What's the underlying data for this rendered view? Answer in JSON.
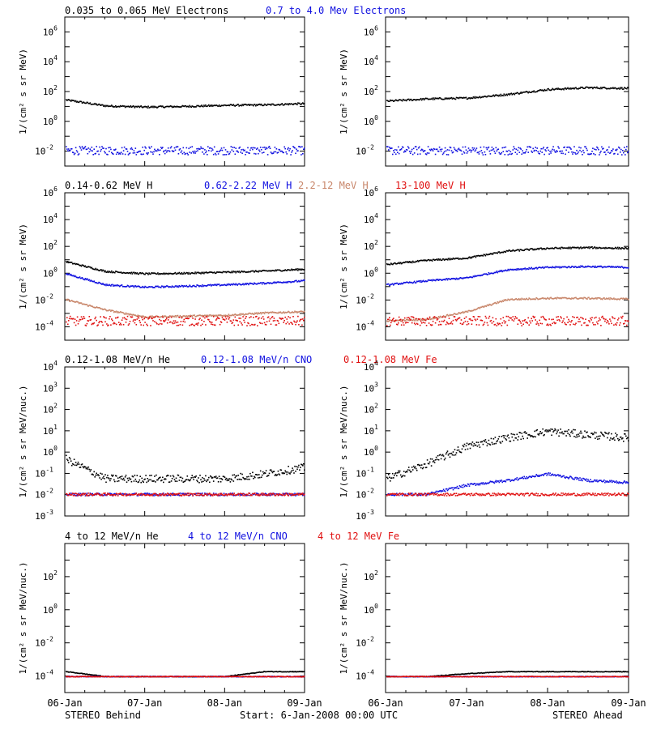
{
  "colors": {
    "black": "#000000",
    "blue": "#1010e0",
    "tan": "#c8866a",
    "red": "#e01010"
  },
  "rows": [
    {
      "legend": [
        {
          "text": "0.035 to 0.065 MeV Electrons",
          "color": "#000000"
        },
        {
          "text": "0.7 to 4.0 Mev Electrons",
          "color": "#1010e0"
        }
      ],
      "ylabel": "1/(cm² s sr MeV)",
      "ylim_log": [
        -3,
        7
      ],
      "ticks": [
        {
          "exp": -2,
          "text": "10",
          "sup": "-2"
        },
        {
          "exp": 0,
          "text": "10",
          "sup": "0"
        },
        {
          "exp": 2,
          "text": "10",
          "sup": "2"
        },
        {
          "exp": 4,
          "text": "10",
          "sup": "4"
        },
        {
          "exp": 6,
          "text": "10",
          "sup": "6"
        }
      ]
    },
    {
      "legend": [
        {
          "text": "0.14-0.62 MeV H",
          "color": "#000000"
        },
        {
          "text": "0.62-2.22 MeV H",
          "color": "#1010e0"
        },
        {
          "text": "2.2-12 MeV H",
          "color": "#c8866a"
        },
        {
          "text": "13-100 MeV H",
          "color": "#e01010"
        }
      ],
      "ylabel": "1/(cm² s sr MeV)",
      "ylim_log": [
        -5,
        6
      ],
      "ticks": [
        {
          "exp": -4,
          "text": "10",
          "sup": "-4"
        },
        {
          "exp": -2,
          "text": "10",
          "sup": "-2"
        },
        {
          "exp": 0,
          "text": "10",
          "sup": "0"
        },
        {
          "exp": 2,
          "text": "10",
          "sup": "2"
        },
        {
          "exp": 4,
          "text": "10",
          "sup": "4"
        },
        {
          "exp": 6,
          "text": "10",
          "sup": "6"
        }
      ]
    },
    {
      "legend": [
        {
          "text": "0.12-1.08 MeV/n He",
          "color": "#000000"
        },
        {
          "text": "0.12-1.08 MeV/n CNO",
          "color": "#1010e0"
        },
        {
          "text": "0.12-1.08 MeV Fe",
          "color": "#e01010"
        }
      ],
      "ylabel": "1/(cm² s sr MeV/nuc.)",
      "ylim_log": [
        -3,
        4
      ],
      "ticks": [
        {
          "exp": -3,
          "text": "10",
          "sup": "-3"
        },
        {
          "exp": -2,
          "text": "10",
          "sup": "-2"
        },
        {
          "exp": -1,
          "text": "10",
          "sup": "-1"
        },
        {
          "exp": 0,
          "text": "10",
          "sup": "0"
        },
        {
          "exp": 1,
          "text": "10",
          "sup": "1"
        },
        {
          "exp": 2,
          "text": "10",
          "sup": "2"
        },
        {
          "exp": 3,
          "text": "10",
          "sup": "3"
        },
        {
          "exp": 4,
          "text": "10",
          "sup": "4"
        }
      ]
    },
    {
      "legend": [
        {
          "text": "4 to 12 MeV/n He",
          "color": "#000000"
        },
        {
          "text": "4 to 12 MeV/n CNO",
          "color": "#1010e0"
        },
        {
          "text": "4 to 12 MeV Fe",
          "color": "#e01010"
        }
      ],
      "ylabel": "1/(cm² s sr MeV/nuc.)",
      "ylim_log": [
        -5,
        4
      ],
      "ticks": [
        {
          "exp": -4,
          "text": "10",
          "sup": "-4"
        },
        {
          "exp": -2,
          "text": "10",
          "sup": "-2"
        },
        {
          "exp": 0,
          "text": "10",
          "sup": "0"
        },
        {
          "exp": 2,
          "text": "10",
          "sup": "2"
        }
      ]
    }
  ],
  "xticks": [
    "06-Jan",
    "07-Jan",
    "08-Jan",
    "09-Jan"
  ],
  "footer": {
    "left": "STEREO Behind",
    "center": "Start:  6-Jan-2008 00:00 UTC",
    "right": "STEREO Ahead"
  },
  "chart_data": [
    {
      "type": "scatter",
      "panel": "STEREO Behind - electrons",
      "x": [
        "06-Jan 00:00",
        "06-Jan 12:00",
        "07-Jan 00:00",
        "07-Jan 12:00",
        "08-Jan 00:00",
        "08-Jan 12:00",
        "09-Jan 00:00"
      ],
      "series": [
        {
          "name": "0.035 to 0.065 MeV Electrons",
          "values": [
            30,
            12,
            10,
            11,
            13,
            14,
            17
          ]
        },
        {
          "name": "0.7 to 4.0 Mev Electrons",
          "values": [
            0.012,
            0.012,
            0.012,
            0.012,
            0.012,
            0.012,
            0.012
          ]
        }
      ],
      "y_scale": "log",
      "ylim": [
        0.001,
        10000000
      ]
    },
    {
      "type": "scatter",
      "panel": "STEREO Ahead - electrons",
      "x": [
        "06-Jan 00:00",
        "06-Jan 12:00",
        "07-Jan 00:00",
        "07-Jan 12:00",
        "08-Jan 00:00",
        "08-Jan 12:00",
        "09-Jan 00:00"
      ],
      "series": [
        {
          "name": "0.035 to 0.065 MeV Electrons",
          "values": [
            25,
            35,
            40,
            70,
            150,
            200,
            180
          ]
        },
        {
          "name": "0.7 to 4.0 Mev Electrons",
          "values": [
            0.012,
            0.012,
            0.012,
            0.012,
            0.012,
            0.012,
            0.012
          ]
        }
      ],
      "y_scale": "log",
      "ylim": [
        0.001,
        10000000
      ]
    },
    {
      "type": "scatter",
      "panel": "STEREO Behind - protons",
      "x": [
        "06-Jan 00:00",
        "06-Jan 12:00",
        "07-Jan 00:00",
        "07-Jan 12:00",
        "08-Jan 00:00",
        "08-Jan 12:00",
        "09-Jan 00:00"
      ],
      "series": [
        {
          "name": "0.14-0.62 MeV H",
          "values": [
            8,
            1.5,
            1.0,
            1.1,
            1.3,
            1.6,
            2.2
          ]
        },
        {
          "name": "0.62-2.22 MeV H",
          "values": [
            1.0,
            0.15,
            0.1,
            0.12,
            0.15,
            0.2,
            0.3
          ]
        },
        {
          "name": "2.2-12 MeV H",
          "values": [
            0.012,
            0.002,
            0.0006,
            0.0007,
            0.0008,
            0.0012,
            0.0015
          ]
        },
        {
          "name": "13-100 MeV H",
          "values": [
            0.0003,
            0.0003,
            0.0003,
            0.0003,
            0.0003,
            0.0003,
            0.0003
          ]
        }
      ],
      "y_scale": "log",
      "ylim": [
        1e-05,
        1000000
      ]
    },
    {
      "type": "scatter",
      "panel": "STEREO Ahead - protons",
      "x": [
        "06-Jan 00:00",
        "06-Jan 12:00",
        "07-Jan 00:00",
        "07-Jan 12:00",
        "08-Jan 00:00",
        "08-Jan 12:00",
        "09-Jan 00:00"
      ],
      "series": [
        {
          "name": "0.14-0.62 MeV H",
          "values": [
            5,
            10,
            15,
            50,
            80,
            90,
            80
          ]
        },
        {
          "name": "0.62-2.22 MeV H",
          "values": [
            0.15,
            0.3,
            0.5,
            2,
            3,
            3.5,
            3
          ]
        },
        {
          "name": "2.2-12 MeV H",
          "values": [
            0.0003,
            0.0004,
            0.0015,
            0.012,
            0.015,
            0.015,
            0.013
          ]
        },
        {
          "name": "13-100 MeV H",
          "values": [
            0.0003,
            0.0003,
            0.0003,
            0.0003,
            0.0003,
            0.0003,
            0.0003
          ]
        }
      ],
      "y_scale": "log",
      "ylim": [
        1e-05,
        1000000
      ]
    },
    {
      "type": "scatter",
      "panel": "STEREO Behind - 0.12-1.08 MeV/n ions",
      "x": [
        "06-Jan 00:00",
        "06-Jan 12:00",
        "07-Jan 00:00",
        "07-Jan 12:00",
        "08-Jan 00:00",
        "08-Jan 12:00",
        "09-Jan 00:00"
      ],
      "series": [
        {
          "name": "0.12-1.08 MeV/n He",
          "values": [
            0.5,
            0.06,
            0.06,
            0.06,
            0.06,
            0.1,
            0.2
          ]
        },
        {
          "name": "0.12-1.08 MeV/n CNO",
          "values": [
            0.011,
            0.011,
            0.011,
            0.011,
            0.011,
            0.011,
            0.011
          ]
        },
        {
          "name": "0.12-1.08 MeV Fe",
          "values": [
            0.011,
            0.011,
            0.011,
            0.011,
            0.011,
            0.011,
            0.011
          ]
        }
      ],
      "y_scale": "log",
      "ylim": [
        0.0005,
        10000
      ]
    },
    {
      "type": "scatter",
      "panel": "STEREO Ahead - 0.12-1.08 MeV/n ions",
      "x": [
        "06-Jan 00:00",
        "06-Jan 12:00",
        "07-Jan 00:00",
        "07-Jan 12:00",
        "08-Jan 00:00",
        "08-Jan 12:00",
        "09-Jan 00:00"
      ],
      "series": [
        {
          "name": "0.12-1.08 MeV/n He",
          "values": [
            0.06,
            0.3,
            2,
            5,
            10,
            7,
            5
          ]
        },
        {
          "name": "0.12-1.08 MeV/n CNO",
          "values": [
            0.011,
            0.011,
            0.03,
            0.05,
            0.1,
            0.05,
            0.04
          ]
        },
        {
          "name": "0.12-1.08 MeV Fe",
          "values": [
            0.011,
            0.011,
            0.011,
            0.011,
            0.011,
            0.011,
            0.011
          ]
        }
      ],
      "y_scale": "log",
      "ylim": [
        0.0005,
        10000
      ]
    },
    {
      "type": "scatter",
      "panel": "STEREO Behind - 4 to 12 MeV/n ions",
      "x": [
        "06-Jan 00:00",
        "06-Jan 12:00",
        "07-Jan 00:00",
        "07-Jan 12:00",
        "08-Jan 00:00",
        "08-Jan 12:00",
        "09-Jan 00:00"
      ],
      "series": [
        {
          "name": "4 to 12 MeV/n He",
          "values": [
            0.0002,
            0.0001,
            0.0001,
            0.0001,
            0.0001,
            0.0002,
            0.0002
          ]
        },
        {
          "name": "4 to 12 MeV/n CNO",
          "values": [
            0.0001,
            0.0001,
            0.0001,
            0.0001,
            0.0001,
            0.0001,
            0.0001
          ]
        },
        {
          "name": "4 to 12 MeV Fe",
          "values": [
            0.0001,
            0.0001,
            0.0001,
            0.0001,
            0.0001,
            0.0001,
            0.0001
          ]
        }
      ],
      "y_scale": "log",
      "ylim": [
        1e-05,
        10000
      ]
    },
    {
      "type": "scatter",
      "panel": "STEREO Ahead - 4 to 12 MeV/n ions",
      "x": [
        "06-Jan 00:00",
        "06-Jan 12:00",
        "07-Jan 00:00",
        "07-Jan 12:00",
        "08-Jan 00:00",
        "08-Jan 12:00",
        "09-Jan 00:00"
      ],
      "series": [
        {
          "name": "4 to 12 MeV/n He",
          "values": [
            0.0001,
            0.0001,
            0.00015,
            0.0002,
            0.0002,
            0.0002,
            0.0002
          ]
        },
        {
          "name": "4 to 12 MeV/n CNO",
          "values": [
            0.0001,
            0.0001,
            0.0001,
            0.0001,
            0.0001,
            0.0001,
            0.0001
          ]
        },
        {
          "name": "4 to 12 MeV Fe",
          "values": [
            0.0001,
            0.0001,
            0.0001,
            0.0001,
            0.0001,
            0.0001,
            0.0001
          ]
        }
      ],
      "y_scale": "log",
      "ylim": [
        1e-05,
        10000
      ]
    }
  ]
}
